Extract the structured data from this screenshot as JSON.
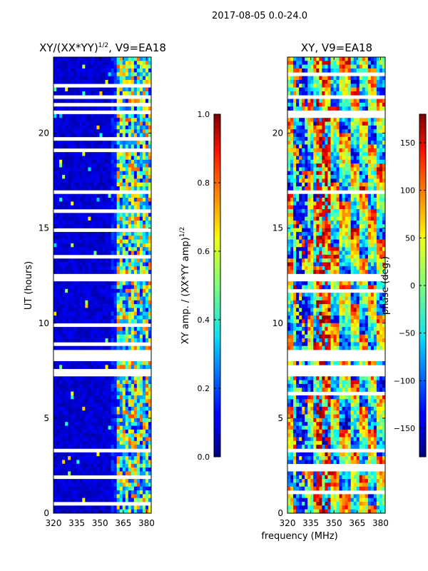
{
  "figure": {
    "suptitle": "2017-08-05 0.0-24.0",
    "xlabel": "frequency (MHz)"
  },
  "chart_data": [
    {
      "type": "heatmap",
      "title": "XY/(XX*YY)",
      "title_sup": "1/2",
      "title_suffix": ", V9=EA18",
      "ylabel": "UT (hours)",
      "xlim": [
        320,
        383
      ],
      "ylim": [
        0,
        24
      ],
      "xticks": [
        320,
        335,
        350,
        365,
        380
      ],
      "yticks": [
        0,
        5,
        10,
        15,
        20
      ],
      "colorbar": {
        "label": "XY amp. / (XX*YY amp)",
        "label_sup": "1/2",
        "range": [
          0.0,
          1.0
        ],
        "ticks": [
          "0.0",
          "0.2",
          "0.4",
          "0.6",
          "0.8",
          "1.0"
        ],
        "tick_values": [
          0.0,
          0.2,
          0.4,
          0.6,
          0.8,
          1.0
        ],
        "colormap": "jet"
      },
      "blank_bands_hours": [
        [
          8.0,
          8.5
        ],
        [
          7.3,
          7.55
        ],
        [
          12.2,
          12.6
        ],
        [
          3.2,
          3.45
        ],
        [
          21.8,
          21.95
        ]
      ]
    },
    {
      "type": "heatmap",
      "title": "XY, V9=EA18",
      "xlim": [
        320,
        383
      ],
      "ylim": [
        0,
        24
      ],
      "xticks": [
        320,
        335,
        350,
        365,
        380
      ],
      "yticks": [
        0,
        5,
        10,
        15,
        20
      ],
      "colorbar": {
        "label": "phase (deg.)",
        "range": [
          -180,
          180
        ],
        "ticks": [
          "150",
          "100",
          "50",
          "0",
          "−50",
          "−100",
          "−150"
        ],
        "tick_values": [
          150,
          100,
          50,
          0,
          -50,
          -100,
          -150
        ],
        "colormap": "jet"
      },
      "blank_bands_hours": [
        [
          8.0,
          8.5
        ],
        [
          7.3,
          7.55
        ],
        [
          12.2,
          12.6
        ],
        [
          3.2,
          3.45
        ],
        [
          21.8,
          21.95
        ]
      ]
    }
  ]
}
